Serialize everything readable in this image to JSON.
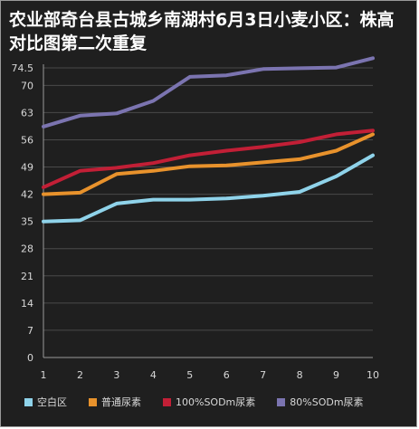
{
  "chart_data": {
    "type": "line",
    "title": "农业部奇台县古城乡南湖村6月3日小麦小区：株高对比图第二次重复",
    "x": [
      "1",
      "2",
      "3",
      "4",
      "5",
      "6",
      "7",
      "8",
      "9",
      "10"
    ],
    "y_ticks": [
      "0",
      "7",
      "14",
      "21",
      "28",
      "35",
      "42",
      "49",
      "56",
      "63",
      "70",
      "74.5"
    ],
    "ylim": [
      0,
      74.5
    ],
    "grid": true,
    "legend_position": "bottom",
    "series": [
      {
        "name": "空白区",
        "color": "#8fd3ea",
        "values": [
          35,
          35.3,
          39.6,
          40.6,
          40.6,
          40.9,
          41.6,
          42.6,
          46.6,
          52
        ]
      },
      {
        "name": "普通尿素",
        "color": "#e8922c",
        "values": [
          42,
          42.4,
          47.2,
          48,
          49.2,
          49.4,
          50.2,
          51,
          53.2,
          57.4
        ]
      },
      {
        "name": "100%SODm尿素",
        "color": "#c21f36",
        "values": [
          43.8,
          48,
          48.8,
          50,
          52,
          53.2,
          54.2,
          55.4,
          57.4,
          58.4
        ]
      },
      {
        "name": "80%SODm尿素",
        "color": "#7b74b0",
        "values": [
          59.4,
          62.2,
          62.8,
          66,
          72.2,
          72.6,
          74.2,
          74.4,
          74.6,
          77
        ]
      }
    ]
  }
}
